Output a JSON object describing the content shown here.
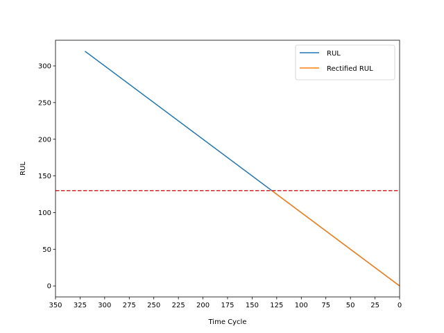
{
  "chart_data": {
    "type": "line",
    "xlabel": "Time Cycle",
    "ylabel": "RUL",
    "xlim": [
      350,
      0
    ],
    "ylim": [
      -15,
      335
    ],
    "x_inverted": true,
    "xticks": [
      350,
      325,
      300,
      275,
      250,
      225,
      200,
      175,
      150,
      125,
      100,
      75,
      50,
      25,
      0
    ],
    "yticks": [
      0,
      50,
      100,
      150,
      200,
      250,
      300
    ],
    "grid": false,
    "legend_position": "top-right",
    "series": [
      {
        "name": "RUL",
        "color": "#1f77b4",
        "x": [
          320,
          0
        ],
        "y": [
          320,
          0
        ]
      },
      {
        "name": "Rectified RUL",
        "color": "#ff7f0e",
        "x": [
          130,
          0
        ],
        "y": [
          130,
          0
        ]
      }
    ],
    "reference_lines": [
      {
        "orientation": "horizontal",
        "y": 130,
        "color": "#d62728",
        "style": "dashed"
      }
    ]
  }
}
